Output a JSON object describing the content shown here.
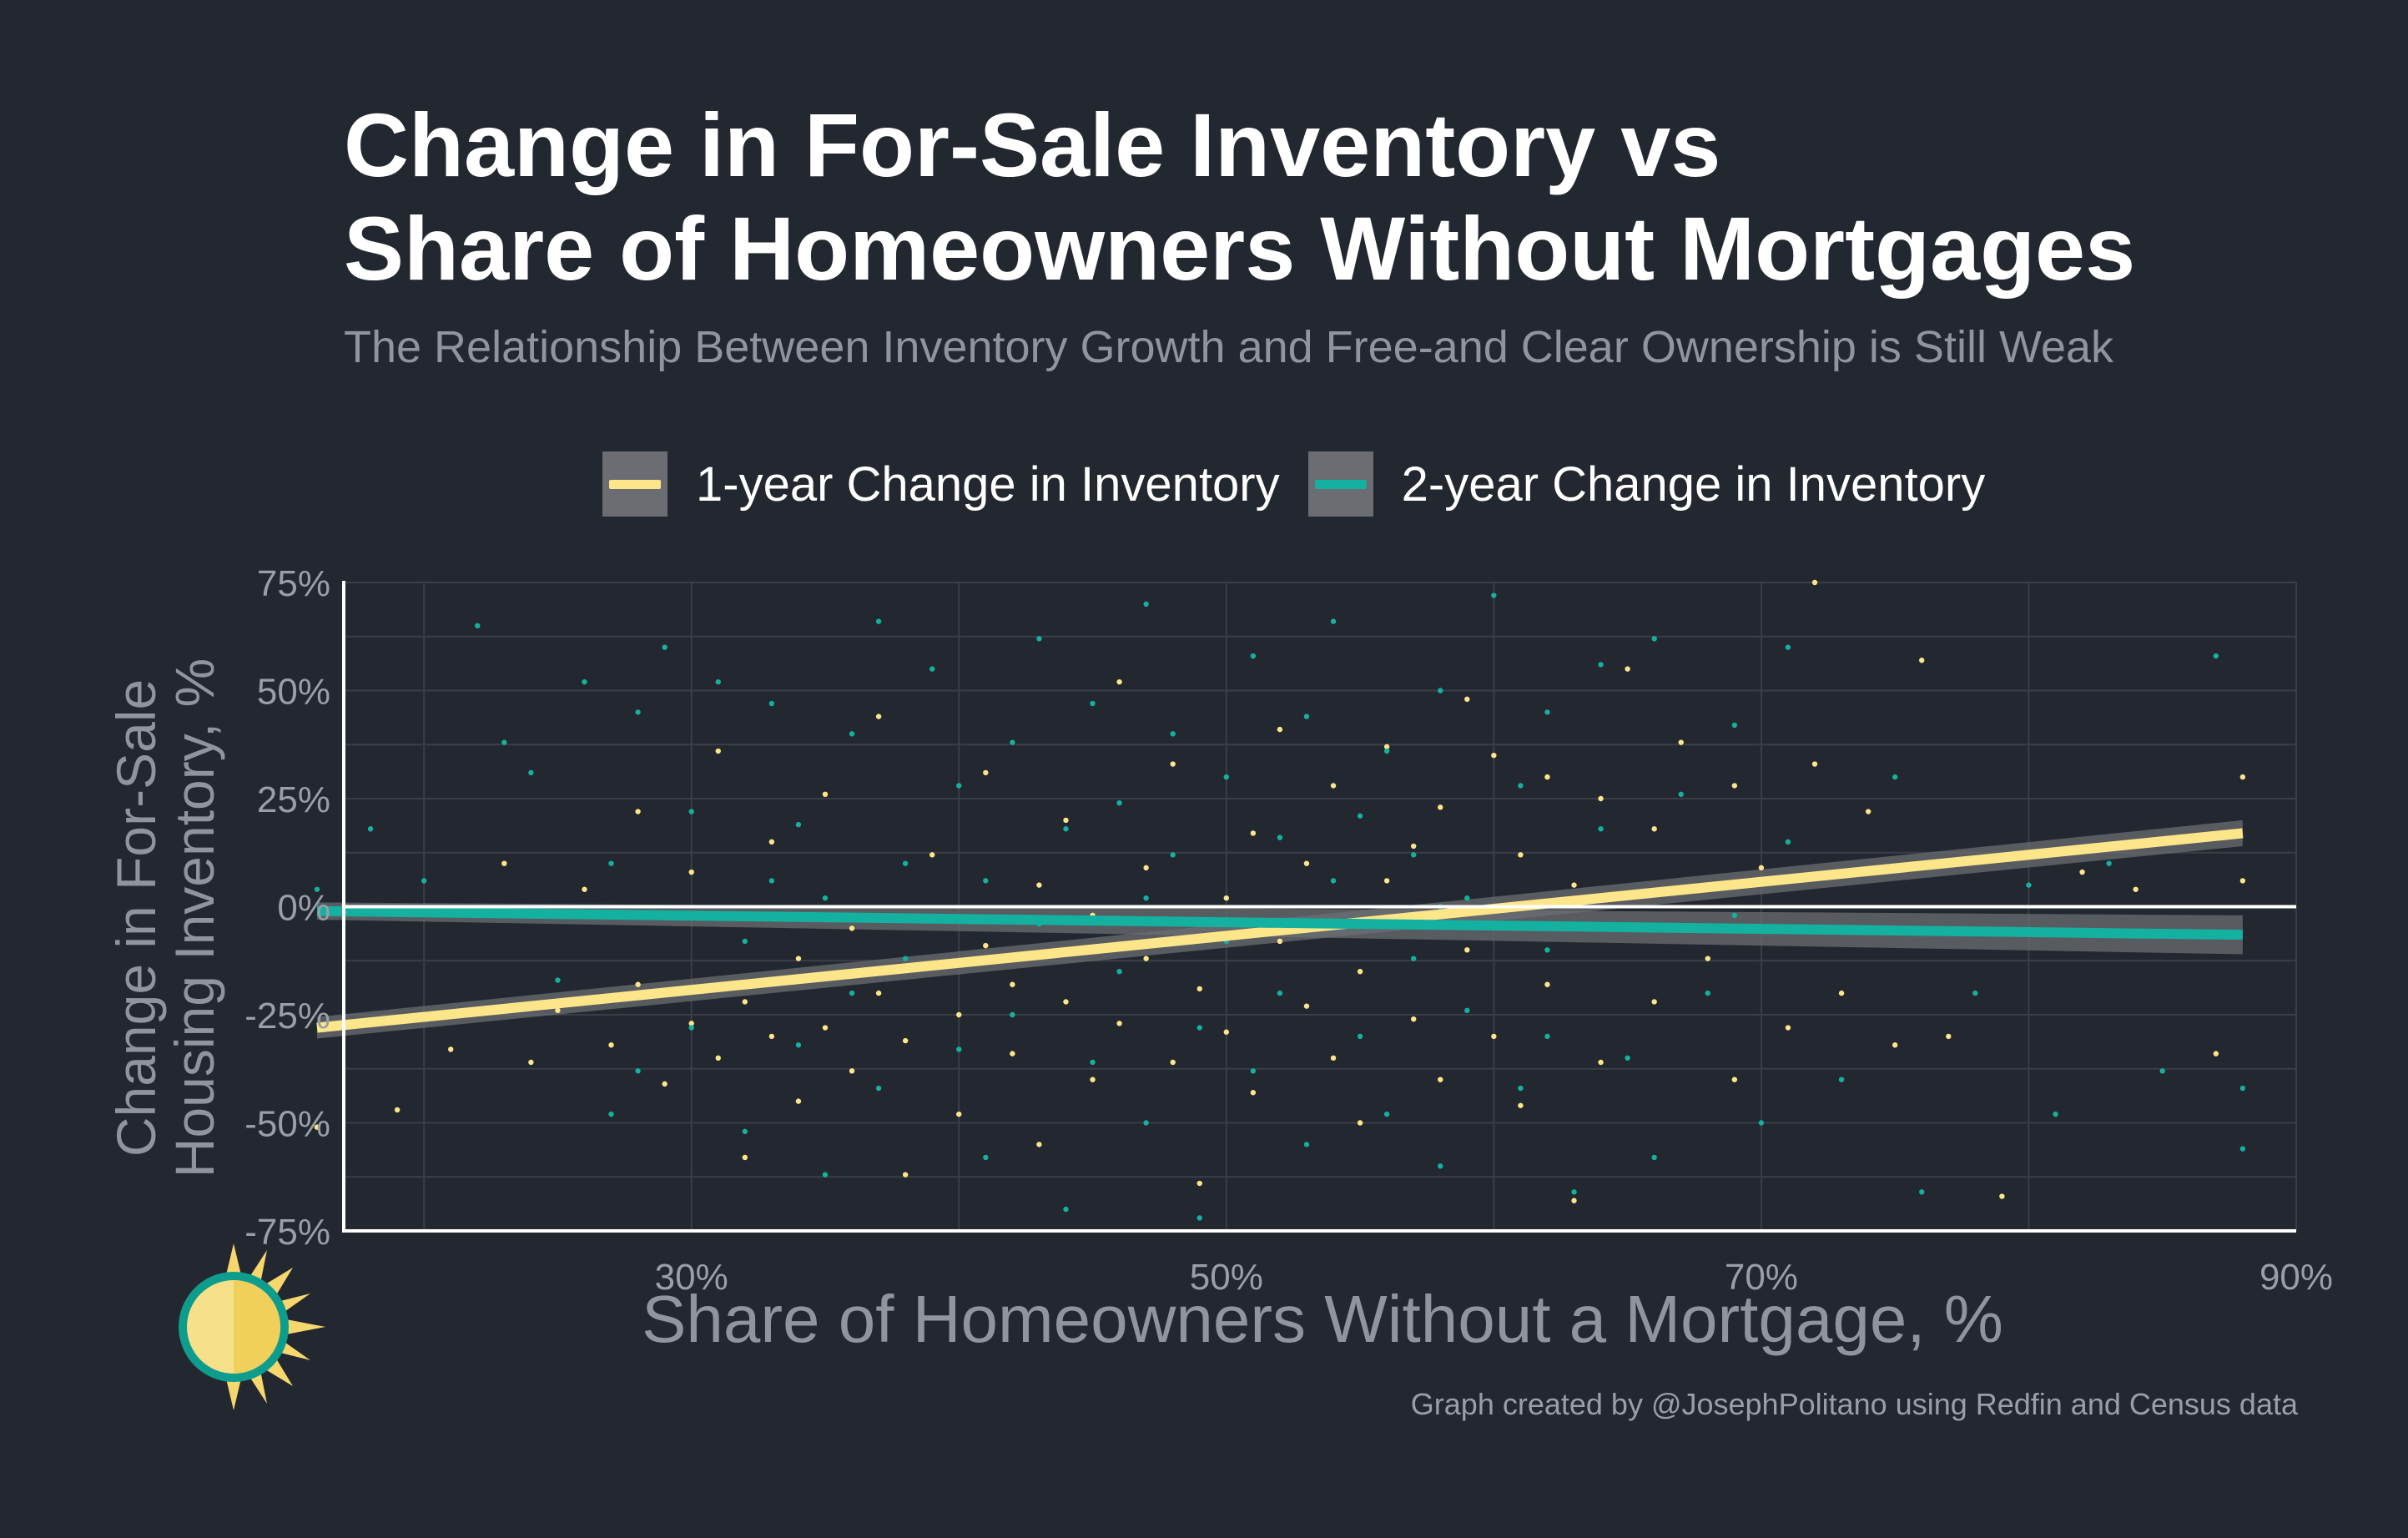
{
  "title_lines": [
    "Change in For-Sale Inventory vs",
    "Share of Homeowners Without Mortgages"
  ],
  "subtitle": "The Relationship Between Inventory Growth and Free-and Clear Ownership is Still Weak",
  "caption": "Graph created by @JosephPolitano using Redfin and Census data",
  "colors": {
    "background": "#23272f",
    "series_1year": "#fde68a",
    "series_2year": "#14b0a0",
    "confidence_band": "#6b6d72",
    "zero_line": "#ffffff"
  },
  "logo_icon": "sun-icon",
  "chart_data": {
    "type": "scatter",
    "title": "Change in For-Sale Inventory vs Share of Homeowners Without Mortgages",
    "xlabel": "Share of Homeowners Without a Mortgage, %",
    "ylabel_lines": [
      "Change in For-Sale",
      "Housing Inventory, %"
    ],
    "xlim": [
      0.17,
      0.9
    ],
    "ylim": [
      -0.75,
      0.75
    ],
    "x_ticks": [
      {
        "value": 0.3,
        "label": "30%"
      },
      {
        "value": 0.5,
        "label": "50%"
      },
      {
        "value": 0.7,
        "label": "70%"
      },
      {
        "value": 0.9,
        "label": "90%"
      }
    ],
    "y_ticks": [
      {
        "value": 0.75,
        "label": "75%"
      },
      {
        "value": 0.5,
        "label": "50%"
      },
      {
        "value": 0.25,
        "label": "25%"
      },
      {
        "value": 0.0,
        "label": "0%"
      },
      {
        "value": -0.25,
        "label": "-25%"
      },
      {
        "value": -0.5,
        "label": "-50%"
      },
      {
        "value": -0.75,
        "label": "-75%"
      }
    ],
    "grid": true,
    "legend_position": "top",
    "series": [
      {
        "name": "1-year Change in Inventory",
        "color": "#fde68a",
        "trend": {
          "x": [
            0.16,
            0.88
          ],
          "y": [
            -0.28,
            0.17
          ],
          "band_halfwidth": [
            0.025,
            0.03
          ]
        },
        "points": [
          [
            0.16,
            -0.51
          ],
          [
            0.19,
            -0.47
          ],
          [
            0.21,
            -0.33
          ],
          [
            0.23,
            0.1
          ],
          [
            0.24,
            -0.36
          ],
          [
            0.25,
            -0.24
          ],
          [
            0.26,
            0.04
          ],
          [
            0.27,
            -0.32
          ],
          [
            0.28,
            -0.18
          ],
          [
            0.28,
            0.22
          ],
          [
            0.29,
            -0.41
          ],
          [
            0.3,
            -0.27
          ],
          [
            0.3,
            0.08
          ],
          [
            0.31,
            -0.35
          ],
          [
            0.31,
            0.36
          ],
          [
            0.32,
            -0.22
          ],
          [
            0.32,
            -0.58
          ],
          [
            0.33,
            -0.3
          ],
          [
            0.33,
            0.15
          ],
          [
            0.34,
            -0.12
          ],
          [
            0.34,
            -0.45
          ],
          [
            0.35,
            -0.28
          ],
          [
            0.35,
            0.26
          ],
          [
            0.36,
            -0.05
          ],
          [
            0.36,
            -0.38
          ],
          [
            0.37,
            -0.2
          ],
          [
            0.37,
            0.44
          ],
          [
            0.38,
            -0.31
          ],
          [
            0.38,
            -0.62
          ],
          [
            0.39,
            -0.14
          ],
          [
            0.39,
            0.12
          ],
          [
            0.4,
            -0.25
          ],
          [
            0.4,
            -0.48
          ],
          [
            0.41,
            -0.09
          ],
          [
            0.41,
            0.31
          ],
          [
            0.42,
            -0.34
          ],
          [
            0.42,
            -0.18
          ],
          [
            0.43,
            0.05
          ],
          [
            0.43,
            -0.55
          ],
          [
            0.44,
            -0.22
          ],
          [
            0.44,
            0.2
          ],
          [
            0.45,
            -0.4
          ],
          [
            0.45,
            -0.02
          ],
          [
            0.46,
            0.52
          ],
          [
            0.46,
            -0.27
          ],
          [
            0.47,
            -0.12
          ],
          [
            0.47,
            0.09
          ],
          [
            0.48,
            -0.36
          ],
          [
            0.48,
            0.33
          ],
          [
            0.49,
            -0.19
          ],
          [
            0.49,
            -0.64
          ],
          [
            0.5,
            0.02
          ],
          [
            0.5,
            -0.29
          ],
          [
            0.51,
            0.17
          ],
          [
            0.51,
            -0.43
          ],
          [
            0.52,
            -0.08
          ],
          [
            0.52,
            0.41
          ],
          [
            0.53,
            -0.23
          ],
          [
            0.53,
            0.1
          ],
          [
            0.54,
            -0.35
          ],
          [
            0.54,
            0.28
          ],
          [
            0.55,
            -0.15
          ],
          [
            0.55,
            -0.5
          ],
          [
            0.56,
            0.06
          ],
          [
            0.56,
            0.37
          ],
          [
            0.57,
            -0.26
          ],
          [
            0.57,
            0.14
          ],
          [
            0.58,
            -0.4
          ],
          [
            0.58,
            0.23
          ],
          [
            0.59,
            -0.1
          ],
          [
            0.59,
            0.48
          ],
          [
            0.6,
            0.35
          ],
          [
            0.6,
            -0.3
          ],
          [
            0.61,
            0.12
          ],
          [
            0.61,
            -0.46
          ],
          [
            0.62,
            0.3
          ],
          [
            0.62,
            -0.18
          ],
          [
            0.63,
            0.05
          ],
          [
            0.63,
            -0.68
          ],
          [
            0.64,
            0.25
          ],
          [
            0.64,
            -0.36
          ],
          [
            0.65,
            -0.05
          ],
          [
            0.65,
            0.55
          ],
          [
            0.66,
            0.18
          ],
          [
            0.66,
            -0.22
          ],
          [
            0.67,
            0.38
          ],
          [
            0.68,
            -0.12
          ],
          [
            0.69,
            0.28
          ],
          [
            0.69,
            -0.4
          ],
          [
            0.7,
            0.09
          ],
          [
            0.71,
            -0.28
          ],
          [
            0.72,
            0.75
          ],
          [
            0.72,
            0.33
          ],
          [
            0.73,
            -0.2
          ],
          [
            0.74,
            0.22
          ],
          [
            0.75,
            -0.32
          ],
          [
            0.76,
            0.57
          ],
          [
            0.77,
            -0.3
          ],
          [
            0.79,
            -0.67
          ],
          [
            0.82,
            0.08
          ],
          [
            0.84,
            0.04
          ],
          [
            0.87,
            -0.34
          ],
          [
            0.88,
            0.3
          ],
          [
            0.88,
            0.06
          ]
        ]
      },
      {
        "name": "2-year Change in Inventory",
        "color": "#14b0a0",
        "trend": {
          "x": [
            0.16,
            0.88
          ],
          "y": [
            -0.01,
            -0.065
          ],
          "band_halfwidth": [
            0.02,
            0.045
          ]
        },
        "points": [
          [
            0.16,
            0.04
          ],
          [
            0.18,
            0.18
          ],
          [
            0.2,
            0.06
          ],
          [
            0.22,
            0.65
          ],
          [
            0.23,
            0.38
          ],
          [
            0.24,
            0.31
          ],
          [
            0.25,
            -0.17
          ],
          [
            0.26,
            0.52
          ],
          [
            0.27,
            -0.48
          ],
          [
            0.28,
            0.45
          ],
          [
            0.28,
            -0.38
          ],
          [
            0.29,
            0.6
          ],
          [
            0.3,
            -0.28
          ],
          [
            0.3,
            0.22
          ],
          [
            0.31,
            0.52
          ],
          [
            0.32,
            -0.08
          ],
          [
            0.32,
            -0.52
          ],
          [
            0.33,
            0.47
          ],
          [
            0.34,
            0.19
          ],
          [
            0.34,
            -0.32
          ],
          [
            0.35,
            0.02
          ],
          [
            0.35,
            -0.62
          ],
          [
            0.36,
            0.4
          ],
          [
            0.36,
            -0.2
          ],
          [
            0.37,
            0.66
          ],
          [
            0.37,
            -0.42
          ],
          [
            0.38,
            0.1
          ],
          [
            0.38,
            -0.12
          ],
          [
            0.39,
            0.55
          ],
          [
            0.4,
            -0.33
          ],
          [
            0.4,
            0.28
          ],
          [
            0.41,
            -0.58
          ],
          [
            0.41,
            0.06
          ],
          [
            0.42,
            0.38
          ],
          [
            0.42,
            -0.25
          ],
          [
            0.43,
            0.62
          ],
          [
            0.43,
            -0.04
          ],
          [
            0.44,
            0.18
          ],
          [
            0.44,
            -0.7
          ],
          [
            0.45,
            0.47
          ],
          [
            0.45,
            -0.36
          ],
          [
            0.46,
            0.24
          ],
          [
            0.46,
            -0.15
          ],
          [
            0.47,
            0.7
          ],
          [
            0.47,
            -0.5
          ],
          [
            0.48,
            0.12
          ],
          [
            0.48,
            0.4
          ],
          [
            0.49,
            -0.28
          ],
          [
            0.49,
            -0.72
          ],
          [
            0.5,
            0.3
          ],
          [
            0.5,
            -0.08
          ],
          [
            0.51,
            0.58
          ],
          [
            0.51,
            -0.38
          ],
          [
            0.52,
            0.16
          ],
          [
            0.52,
            -0.2
          ],
          [
            0.53,
            0.44
          ],
          [
            0.53,
            -0.55
          ],
          [
            0.54,
            0.06
          ],
          [
            0.54,
            0.66
          ],
          [
            0.55,
            -0.3
          ],
          [
            0.55,
            0.21
          ],
          [
            0.56,
            -0.48
          ],
          [
            0.56,
            0.36
          ],
          [
            0.57,
            -0.12
          ],
          [
            0.57,
            0.12
          ],
          [
            0.58,
            0.5
          ],
          [
            0.58,
            -0.6
          ],
          [
            0.59,
            0.02
          ],
          [
            0.59,
            -0.24
          ],
          [
            0.6,
            0.72
          ],
          [
            0.61,
            0.28
          ],
          [
            0.61,
            -0.42
          ],
          [
            0.62,
            0.45
          ],
          [
            0.62,
            -0.1
          ],
          [
            0.63,
            -0.66
          ],
          [
            0.64,
            0.18
          ],
          [
            0.64,
            0.56
          ],
          [
            0.65,
            -0.35
          ],
          [
            0.66,
            0.62
          ],
          [
            0.66,
            -0.58
          ],
          [
            0.67,
            0.26
          ],
          [
            0.68,
            -0.2
          ],
          [
            0.69,
            0.42
          ],
          [
            0.7,
            -0.5
          ],
          [
            0.71,
            0.15
          ],
          [
            0.71,
            0.6
          ],
          [
            0.73,
            -0.4
          ],
          [
            0.74,
            -0.06
          ],
          [
            0.75,
            0.3
          ],
          [
            0.76,
            -0.66
          ],
          [
            0.78,
            -0.2
          ],
          [
            0.8,
            0.05
          ],
          [
            0.81,
            -0.48
          ],
          [
            0.83,
            0.1
          ],
          [
            0.85,
            -0.38
          ],
          [
            0.87,
            0.58
          ],
          [
            0.88,
            -0.42
          ],
          [
            0.88,
            -0.56
          ],
          [
            0.27,
            0.1
          ],
          [
            0.33,
            0.06
          ],
          [
            0.47,
            0.02
          ],
          [
            0.58,
            0.0
          ],
          [
            0.69,
            -0.02
          ],
          [
            0.62,
            -0.3
          ]
        ]
      }
    ]
  }
}
